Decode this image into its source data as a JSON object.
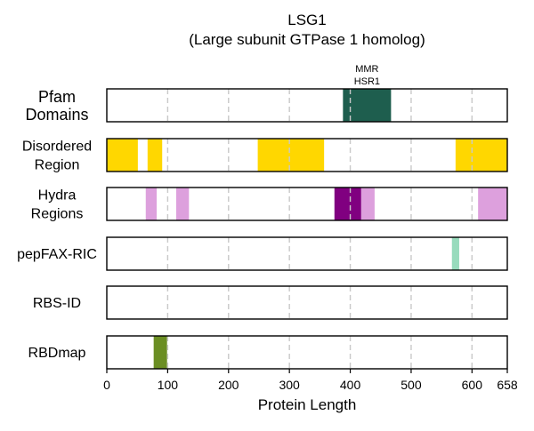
{
  "chart_data": {
    "type": "bar",
    "title": "LSG1",
    "subtitle": "(Large subunit GTPase 1 homolog)",
    "xlabel": "Protein Length",
    "xlim": [
      0,
      658
    ],
    "x_ticks": [
      0,
      100,
      200,
      300,
      400,
      500,
      600,
      658
    ],
    "grid": true,
    "tracks": [
      {
        "name": "Pfam Domains",
        "label_lines": [
          "Pfam",
          "Domains"
        ],
        "segments": [
          {
            "start": 388,
            "end": 467,
            "color": "#1e5e4e",
            "label_lines": [
              "MMR",
              "HSR1"
            ]
          }
        ]
      },
      {
        "name": "Disordered Region",
        "label_lines": [
          "Disordered",
          "Region"
        ],
        "segments": [
          {
            "start": 0,
            "end": 51,
            "color": "#ffd700"
          },
          {
            "start": 67,
            "end": 91,
            "color": "#ffd700"
          },
          {
            "start": 248,
            "end": 357,
            "color": "#ffd700"
          },
          {
            "start": 573,
            "end": 658,
            "color": "#ffd700"
          }
        ]
      },
      {
        "name": "Hydra Regions",
        "label_lines": [
          "Hydra",
          "Regions"
        ],
        "segments": [
          {
            "start": 64,
            "end": 82,
            "color": "#dda0dd"
          },
          {
            "start": 114,
            "end": 135,
            "color": "#dda0dd"
          },
          {
            "start": 374,
            "end": 418,
            "color": "#800080"
          },
          {
            "start": 418,
            "end": 440,
            "color": "#dda0dd"
          },
          {
            "start": 610,
            "end": 658,
            "color": "#dda0dd"
          }
        ]
      },
      {
        "name": "pepFAX-RIC",
        "label_lines": [
          "pepFAX-RIC"
        ],
        "segments": [
          {
            "start": 567,
            "end": 579,
            "color": "#98dbbd"
          }
        ]
      },
      {
        "name": "RBS-ID",
        "label_lines": [
          "RBS-ID"
        ],
        "segments": []
      },
      {
        "name": "RBDmap",
        "label_lines": [
          "RBDmap"
        ],
        "segments": [
          {
            "start": 77,
            "end": 99,
            "color": "#6b8e23"
          }
        ]
      }
    ]
  }
}
